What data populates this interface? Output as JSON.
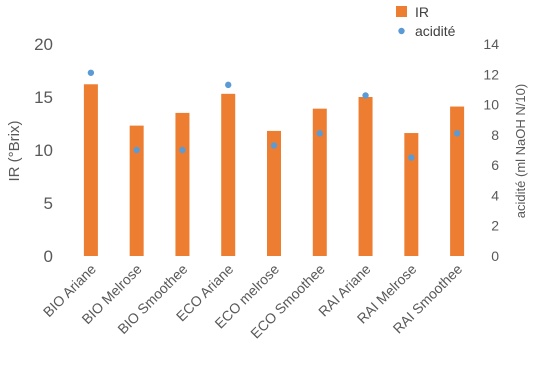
{
  "chart_data": {
    "type": "bar",
    "categories": [
      "BIO Ariane",
      "BIO Melrose",
      "BIO Smoothee",
      "ECO Ariane",
      "ECO melrose",
      "ECO Smoothee",
      "RAI Ariane",
      "RAI Melrose",
      "RAI Smoothee"
    ],
    "series": [
      {
        "name": "IR",
        "type": "bar",
        "axis": "left",
        "color": "#ED7D31",
        "values": [
          16.2,
          12.3,
          13.5,
          15.3,
          11.8,
          13.9,
          15.0,
          11.6,
          14.1
        ]
      },
      {
        "name": "acidité",
        "type": "scatter",
        "axis": "right",
        "color": "#5B9BD5",
        "values": [
          12.1,
          7.0,
          7.0,
          11.3,
          7.3,
          8.1,
          10.6,
          6.5,
          8.1
        ]
      }
    ],
    "ylabel": "IR (°Brix)",
    "y2label": "acidité (ml NaOH N/10)",
    "ylim": [
      0,
      20
    ],
    "yticks": [
      0,
      5,
      10,
      15,
      20
    ],
    "y2lim": [
      0,
      14
    ],
    "y2ticks": [
      0,
      2,
      4,
      6,
      8,
      10,
      12,
      14
    ],
    "grid": false,
    "legend": "top-right"
  }
}
